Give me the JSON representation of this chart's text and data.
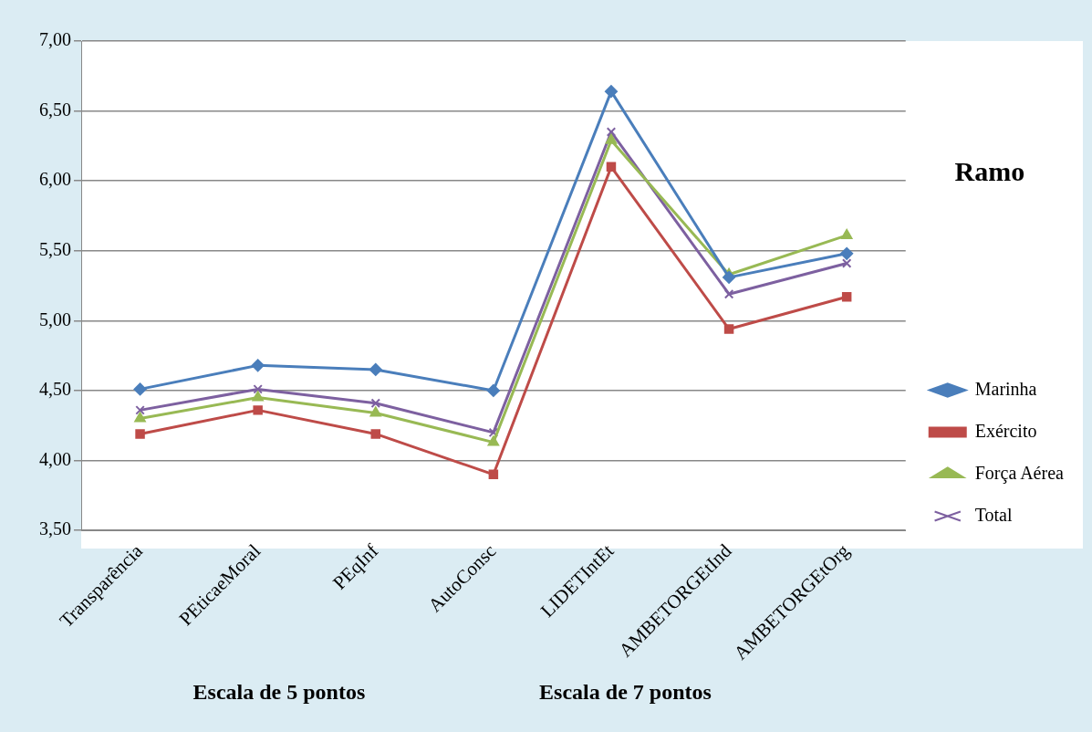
{
  "chart_data": {
    "type": "line",
    "legend_title": "Ramo",
    "categories": [
      "Transparência",
      "PEticaeMoral",
      "PEqInf",
      "AutoConsc",
      "LIDETIntEt",
      "AMBETORGEtInd",
      "AMBETORGEtOrg"
    ],
    "series": [
      {
        "name": "Marinha",
        "color": "#4a7ebb",
        "marker": "diamond",
        "values": [
          4.51,
          4.68,
          4.65,
          4.5,
          6.64,
          5.31,
          5.48
        ]
      },
      {
        "name": "Exército",
        "color": "#be4b48",
        "marker": "square",
        "values": [
          4.19,
          4.36,
          4.19,
          3.9,
          6.1,
          4.94,
          5.17
        ]
      },
      {
        "name": "Força Aérea",
        "color": "#98b954",
        "marker": "triangle",
        "values": [
          4.3,
          4.45,
          4.34,
          4.13,
          6.29,
          5.33,
          5.61
        ]
      },
      {
        "name": "Total",
        "color": "#7d60a0",
        "marker": "cross",
        "values": [
          4.36,
          4.51,
          4.41,
          4.2,
          6.35,
          5.19,
          5.41
        ]
      }
    ],
    "ylim": [
      3.5,
      7
    ],
    "yticks": [
      {
        "value": 3.5,
        "label": "3,50"
      },
      {
        "value": 4,
        "label": "4,00"
      },
      {
        "value": 4.5,
        "label": "4,50"
      },
      {
        "value": 5,
        "label": "5,00"
      },
      {
        "value": 5.5,
        "label": "5,50"
      },
      {
        "value": 6,
        "label": "6,00"
      },
      {
        "value": 6.5,
        "label": "6,50"
      },
      {
        "value": 7,
        "label": "7,00"
      }
    ],
    "grid": "y",
    "legend": "right",
    "line_style": "solid",
    "annotations": [
      "Escala de 5 pontos",
      "Escala de 7 pontos"
    ]
  }
}
